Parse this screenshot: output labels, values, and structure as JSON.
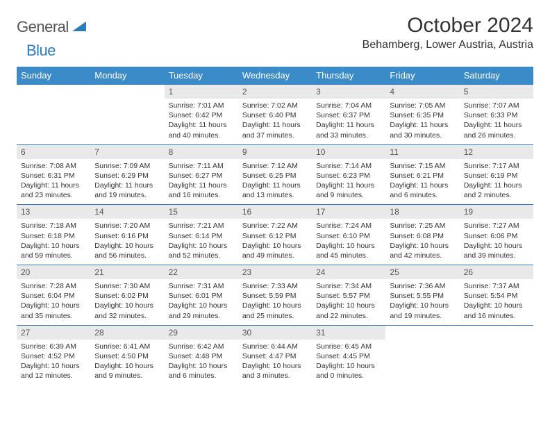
{
  "brand": {
    "text1": "General",
    "text2": "Blue"
  },
  "title": "October 2024",
  "location": "Behamberg, Lower Austria, Austria",
  "colors": {
    "header_bg": "#3b8bc9",
    "header_text": "#ffffff",
    "daynum_bg": "#e9e9e9",
    "daynum_text": "#555555",
    "border": "#2f7bbf",
    "body_text": "#333333",
    "logo_gray": "#555555",
    "logo_blue": "#2f7bbf",
    "page_bg": "#ffffff"
  },
  "day_labels": [
    "Sunday",
    "Monday",
    "Tuesday",
    "Wednesday",
    "Thursday",
    "Friday",
    "Saturday"
  ],
  "weeks": [
    [
      null,
      null,
      {
        "n": "1",
        "sr": "7:01 AM",
        "ss": "6:42 PM",
        "dl": "11 hours and 40 minutes."
      },
      {
        "n": "2",
        "sr": "7:02 AM",
        "ss": "6:40 PM",
        "dl": "11 hours and 37 minutes."
      },
      {
        "n": "3",
        "sr": "7:04 AM",
        "ss": "6:37 PM",
        "dl": "11 hours and 33 minutes."
      },
      {
        "n": "4",
        "sr": "7:05 AM",
        "ss": "6:35 PM",
        "dl": "11 hours and 30 minutes."
      },
      {
        "n": "5",
        "sr": "7:07 AM",
        "ss": "6:33 PM",
        "dl": "11 hours and 26 minutes."
      }
    ],
    [
      {
        "n": "6",
        "sr": "7:08 AM",
        "ss": "6:31 PM",
        "dl": "11 hours and 23 minutes."
      },
      {
        "n": "7",
        "sr": "7:09 AM",
        "ss": "6:29 PM",
        "dl": "11 hours and 19 minutes."
      },
      {
        "n": "8",
        "sr": "7:11 AM",
        "ss": "6:27 PM",
        "dl": "11 hours and 16 minutes."
      },
      {
        "n": "9",
        "sr": "7:12 AM",
        "ss": "6:25 PM",
        "dl": "11 hours and 13 minutes."
      },
      {
        "n": "10",
        "sr": "7:14 AM",
        "ss": "6:23 PM",
        "dl": "11 hours and 9 minutes."
      },
      {
        "n": "11",
        "sr": "7:15 AM",
        "ss": "6:21 PM",
        "dl": "11 hours and 6 minutes."
      },
      {
        "n": "12",
        "sr": "7:17 AM",
        "ss": "6:19 PM",
        "dl": "11 hours and 2 minutes."
      }
    ],
    [
      {
        "n": "13",
        "sr": "7:18 AM",
        "ss": "6:18 PM",
        "dl": "10 hours and 59 minutes."
      },
      {
        "n": "14",
        "sr": "7:20 AM",
        "ss": "6:16 PM",
        "dl": "10 hours and 56 minutes."
      },
      {
        "n": "15",
        "sr": "7:21 AM",
        "ss": "6:14 PM",
        "dl": "10 hours and 52 minutes."
      },
      {
        "n": "16",
        "sr": "7:22 AM",
        "ss": "6:12 PM",
        "dl": "10 hours and 49 minutes."
      },
      {
        "n": "17",
        "sr": "7:24 AM",
        "ss": "6:10 PM",
        "dl": "10 hours and 45 minutes."
      },
      {
        "n": "18",
        "sr": "7:25 AM",
        "ss": "6:08 PM",
        "dl": "10 hours and 42 minutes."
      },
      {
        "n": "19",
        "sr": "7:27 AM",
        "ss": "6:06 PM",
        "dl": "10 hours and 39 minutes."
      }
    ],
    [
      {
        "n": "20",
        "sr": "7:28 AM",
        "ss": "6:04 PM",
        "dl": "10 hours and 35 minutes."
      },
      {
        "n": "21",
        "sr": "7:30 AM",
        "ss": "6:02 PM",
        "dl": "10 hours and 32 minutes."
      },
      {
        "n": "22",
        "sr": "7:31 AM",
        "ss": "6:01 PM",
        "dl": "10 hours and 29 minutes."
      },
      {
        "n": "23",
        "sr": "7:33 AM",
        "ss": "5:59 PM",
        "dl": "10 hours and 25 minutes."
      },
      {
        "n": "24",
        "sr": "7:34 AM",
        "ss": "5:57 PM",
        "dl": "10 hours and 22 minutes."
      },
      {
        "n": "25",
        "sr": "7:36 AM",
        "ss": "5:55 PM",
        "dl": "10 hours and 19 minutes."
      },
      {
        "n": "26",
        "sr": "7:37 AM",
        "ss": "5:54 PM",
        "dl": "10 hours and 16 minutes."
      }
    ],
    [
      {
        "n": "27",
        "sr": "6:39 AM",
        "ss": "4:52 PM",
        "dl": "10 hours and 12 minutes."
      },
      {
        "n": "28",
        "sr": "6:41 AM",
        "ss": "4:50 PM",
        "dl": "10 hours and 9 minutes."
      },
      {
        "n": "29",
        "sr": "6:42 AM",
        "ss": "4:48 PM",
        "dl": "10 hours and 6 minutes."
      },
      {
        "n": "30",
        "sr": "6:44 AM",
        "ss": "4:47 PM",
        "dl": "10 hours and 3 minutes."
      },
      {
        "n": "31",
        "sr": "6:45 AM",
        "ss": "4:45 PM",
        "dl": "10 hours and 0 minutes."
      },
      null,
      null
    ]
  ],
  "labels": {
    "sunrise": "Sunrise:",
    "sunset": "Sunset:",
    "daylight": "Daylight:"
  }
}
